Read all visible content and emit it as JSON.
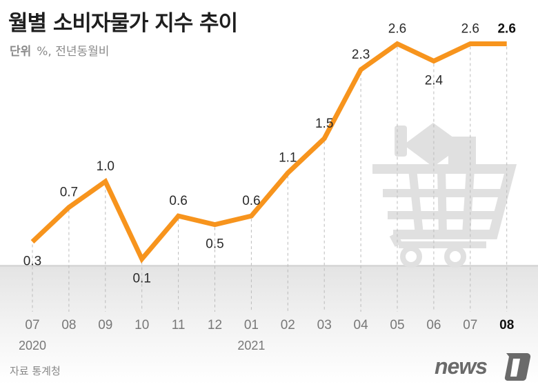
{
  "title": "월별 소비자물가 지수 추이",
  "unit_label": "단위",
  "unit_value": "%, 전년동월비",
  "source": "자료 통계청",
  "logo_text": "news1",
  "colors": {
    "line": "#f7941d",
    "text": "#222222",
    "grid": "#bbbbbb",
    "icon": "#e0e0e0"
  },
  "decoration_icon": "shopping-cart-icon",
  "chart_data": {
    "type": "line",
    "title": "월별 소비자물가 지수 추이",
    "ylabel": "%, 전년동월비",
    "categories": [
      "07",
      "08",
      "09",
      "10",
      "11",
      "12",
      "01",
      "02",
      "03",
      "04",
      "05",
      "06",
      "07",
      "08"
    ],
    "year_labels": [
      {
        "index": 0,
        "label": "2020"
      },
      {
        "index": 6,
        "label": "2021"
      }
    ],
    "series": [
      {
        "values": [
          0.3,
          0.7,
          1.0,
          0.1,
          0.6,
          0.5,
          0.6,
          1.1,
          1.5,
          2.3,
          2.6,
          2.4,
          2.6,
          2.6
        ]
      }
    ],
    "value_labels": [
      "0.3",
      "0.7",
      "1.0",
      "0.1",
      "0.6",
      "0.5",
      "0.6",
      "1.1",
      "1.5",
      "2.3",
      "2.6",
      "2.4",
      "2.6",
      "2.6"
    ],
    "ylim": [
      0,
      2.6
    ],
    "grid": "vertical dashed",
    "highlight_last": true
  }
}
